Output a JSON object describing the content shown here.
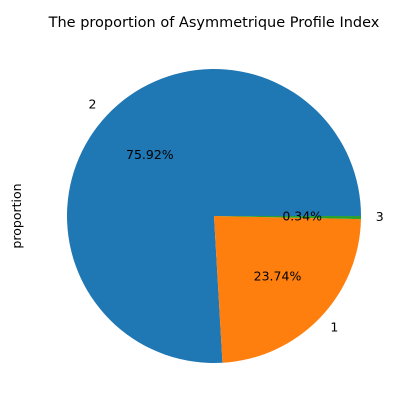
{
  "chart_data": {
    "type": "pie",
    "title": "The proportion of Asymmetrique Profile Index",
    "ylabel": "proportion",
    "categories": [
      "2",
      "1",
      "3"
    ],
    "values": [
      0.7592,
      0.2374,
      0.0034
    ],
    "percent_labels": [
      "75.92%",
      "23.74%",
      "0.34%"
    ],
    "colors": [
      "#1f77b4",
      "#ff7f0e",
      "#2ca02c"
    ],
    "start_angle_deg": 0,
    "direction": "counterclockwise"
  }
}
